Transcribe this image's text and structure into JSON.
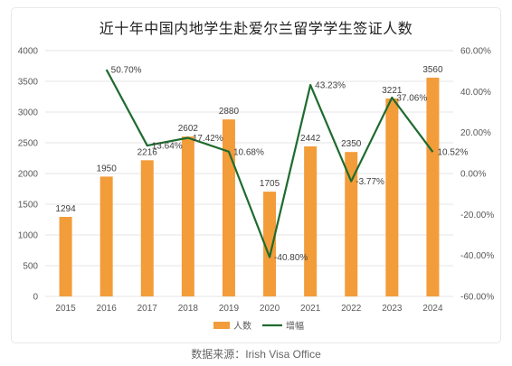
{
  "title": "近十年中国内地学生赴爱尔兰留学学生签证人数",
  "source": "数据来源：Irish Visa Office",
  "colors": {
    "bar": "#f39c3a",
    "line": "#1e6b2e",
    "grid": "#e4e4e4"
  },
  "chart_data": {
    "type": "bar",
    "title": "近十年中国内地学生赴爱尔兰留学学生签证人数",
    "categories": [
      "2015",
      "2016",
      "2017",
      "2018",
      "2019",
      "2020",
      "2021",
      "2022",
      "2023",
      "2024"
    ],
    "series": [
      {
        "name": "人数",
        "type": "bar",
        "axis": "left",
        "values": [
          1294,
          1950,
          2216,
          2602,
          2880,
          1705,
          2442,
          2350,
          3221,
          3560
        ],
        "labels": [
          "1294",
          "1950",
          "2216",
          "2602",
          "2880",
          "1705",
          "2442",
          "2350",
          "3221",
          "3560"
        ]
      },
      {
        "name": "增幅",
        "type": "line",
        "axis": "right",
        "values": [
          null,
          50.7,
          13.64,
          17.42,
          10.68,
          -40.8,
          43.23,
          -3.77,
          37.06,
          10.52
        ],
        "labels": [
          "",
          "50.70%",
          "13.64%",
          "17.42%",
          "10.68%",
          "-40.80%",
          "43.23%",
          "-3.77%",
          "37.06%",
          "10.52%"
        ]
      }
    ],
    "y_left": {
      "min": 0,
      "max": 4000,
      "step": 500,
      "ticks": [
        "0",
        "500",
        "1000",
        "1500",
        "2000",
        "2500",
        "3000",
        "3500",
        "4000"
      ]
    },
    "y_right": {
      "min": -60,
      "max": 60,
      "step": 20,
      "ticks": [
        "-60.00%",
        "-40.00%",
        "-20.00%",
        "0.00%",
        "20.00%",
        "40.00%",
        "60.00%"
      ]
    },
    "grid": true,
    "legend": "bottom-center"
  }
}
